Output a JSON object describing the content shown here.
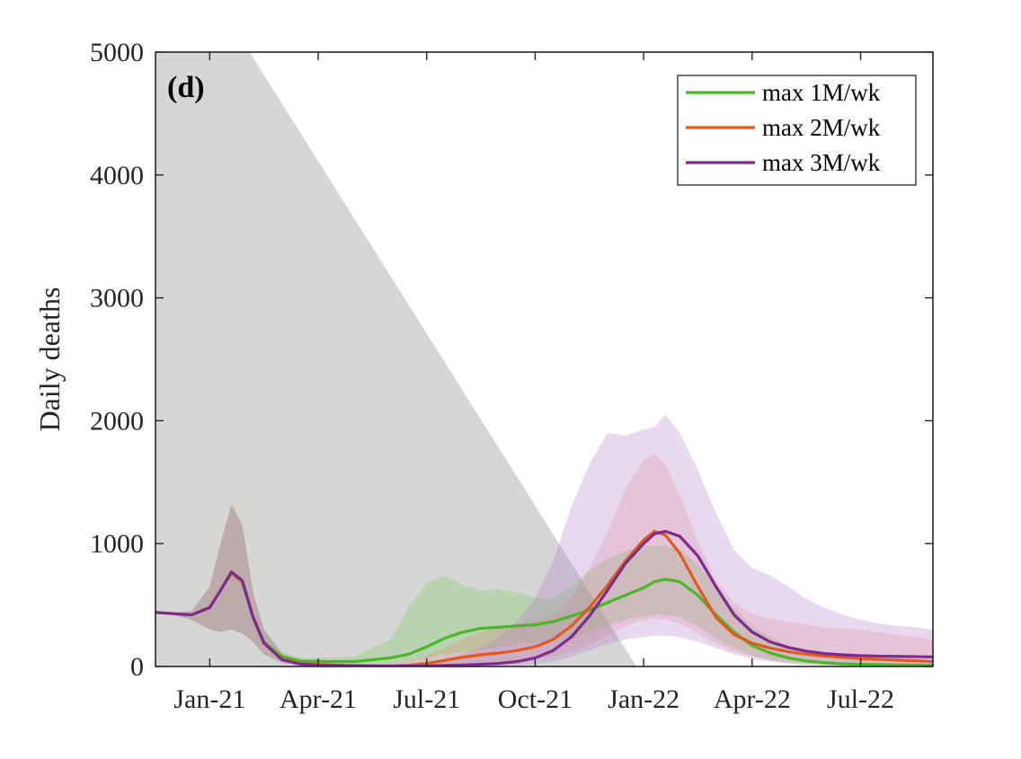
{
  "chart_data": {
    "type": "line",
    "panel_label": "(d)",
    "ylabel": "Daily deaths",
    "xlabel": "",
    "ylim": [
      0,
      5000
    ],
    "xlim": [
      -1.5,
      20
    ],
    "yticks": [
      0,
      1000,
      2000,
      3000,
      4000,
      5000
    ],
    "ytick_labels": [
      "0",
      "1000",
      "2000",
      "3000",
      "4000",
      "5000"
    ],
    "xticks": [
      0,
      3,
      6,
      9,
      12,
      15,
      18
    ],
    "xtick_labels": [
      "Jan-21",
      "Apr-21",
      "Jul-21",
      "Oct-21",
      "Jan-22",
      "Apr-22",
      "Jul-22"
    ],
    "x_unit": "months since Jan-21",
    "legend_position": "top-right",
    "grey_region": {
      "color": "#bdbdbd",
      "points": [
        [
          -1.5,
          5000
        ],
        [
          1.1,
          5000
        ],
        [
          11.8,
          0
        ],
        [
          -1.5,
          0
        ]
      ]
    },
    "series": [
      {
        "name": "max 1M/wk",
        "color": "#4bb62a",
        "band_color": "rgba(110,200,80,0.28)",
        "x": [
          -1.5,
          -1.0,
          -0.5,
          0.0,
          0.3,
          0.6,
          0.9,
          1.2,
          1.5,
          2.0,
          2.5,
          3.0,
          4.0,
          5.0,
          5.5,
          6.0,
          6.5,
          7.0,
          7.5,
          8.0,
          8.5,
          9.0,
          9.5,
          10.0,
          10.5,
          11.0,
          11.5,
          12.0,
          12.3,
          12.6,
          13.0,
          13.5,
          14.0,
          14.5,
          15.0,
          15.5,
          16.0,
          16.5,
          17.0,
          17.5,
          18.0,
          18.5,
          19.0,
          19.5,
          20.0
        ],
        "values": [
          440,
          430,
          420,
          480,
          620,
          760,
          690,
          400,
          200,
          80,
          45,
          40,
          40,
          70,
          100,
          160,
          230,
          280,
          310,
          320,
          330,
          340,
          365,
          410,
          460,
          520,
          580,
          640,
          690,
          710,
          690,
          580,
          420,
          280,
          170,
          110,
          70,
          45,
          30,
          22,
          18,
          15,
          12,
          10,
          8
        ],
        "lower": [
          440,
          420,
          380,
          300,
          280,
          300,
          270,
          200,
          100,
          40,
          20,
          15,
          10,
          20,
          40,
          70,
          100,
          120,
          140,
          160,
          180,
          200,
          210,
          230,
          280,
          330,
          380,
          410,
          420,
          420,
          400,
          330,
          230,
          150,
          90,
          50,
          25,
          15,
          10,
          5,
          3,
          3,
          3,
          3,
          3
        ],
        "upper": [
          450,
          440,
          450,
          650,
          1000,
          1320,
          1150,
          600,
          300,
          120,
          70,
          70,
          80,
          220,
          480,
          680,
          740,
          660,
          620,
          630,
          600,
          560,
          560,
          650,
          780,
          880,
          940,
          980,
          980,
          980,
          950,
          830,
          650,
          470,
          330,
          240,
          170,
          120,
          90,
          70,
          55,
          45,
          40,
          35,
          30
        ]
      },
      {
        "name": "max 2M/wk",
        "color": "#e2581f",
        "band_color": "rgba(232,110,100,0.20)",
        "x": [
          -1.5,
          -1.0,
          -0.5,
          0.0,
          0.3,
          0.6,
          0.9,
          1.2,
          1.5,
          2.0,
          2.5,
          3.0,
          4.0,
          5.0,
          5.5,
          6.0,
          6.5,
          7.0,
          7.5,
          8.0,
          8.5,
          9.0,
          9.5,
          10.0,
          10.5,
          11.0,
          11.5,
          12.0,
          12.3,
          12.6,
          13.0,
          13.5,
          14.0,
          14.5,
          15.0,
          15.5,
          16.0,
          16.5,
          17.0,
          17.5,
          18.0,
          18.5,
          19.0,
          19.5,
          20.0
        ],
        "values": [
          440,
          430,
          420,
          480,
          620,
          760,
          690,
          400,
          190,
          60,
          25,
          15,
          8,
          5,
          10,
          25,
          50,
          75,
          95,
          110,
          130,
          160,
          220,
          330,
          480,
          660,
          860,
          1030,
          1100,
          1070,
          920,
          650,
          400,
          260,
          190,
          150,
          120,
          100,
          85,
          75,
          65,
          58,
          52,
          47,
          40
        ],
        "lower": [
          440,
          420,
          380,
          300,
          280,
          300,
          270,
          200,
          100,
          30,
          10,
          5,
          2,
          1,
          2,
          5,
          10,
          20,
          30,
          40,
          50,
          60,
          80,
          120,
          180,
          250,
          330,
          380,
          390,
          380,
          350,
          270,
          180,
          120,
          80,
          55,
          40,
          30,
          22,
          17,
          14,
          12,
          10,
          9,
          8
        ],
        "upper": [
          450,
          440,
          450,
          650,
          1000,
          1320,
          1150,
          600,
          300,
          110,
          50,
          30,
          20,
          20,
          40,
          90,
          150,
          220,
          280,
          320,
          350,
          370,
          420,
          560,
          800,
          1100,
          1450,
          1680,
          1730,
          1650,
          1400,
          1020,
          700,
          520,
          430,
          390,
          360,
          340,
          320,
          310,
          300,
          280,
          260,
          240,
          220
        ]
      },
      {
        "name": "max 3M/wk",
        "color": "#7d2a91",
        "band_color": "rgba(175,120,200,0.28)",
        "x": [
          -1.5,
          -1.0,
          -0.5,
          0.0,
          0.3,
          0.6,
          0.9,
          1.2,
          1.5,
          2.0,
          2.5,
          3.0,
          4.0,
          5.0,
          5.5,
          6.0,
          6.5,
          7.0,
          7.5,
          8.0,
          8.5,
          9.0,
          9.5,
          10.0,
          10.5,
          11.0,
          11.5,
          12.0,
          12.3,
          12.6,
          13.0,
          13.5,
          14.0,
          14.5,
          15.0,
          15.5,
          16.0,
          16.5,
          17.0,
          17.5,
          18.0,
          18.5,
          19.0,
          19.5,
          20.0
        ],
        "values": [
          440,
          430,
          420,
          480,
          620,
          770,
          700,
          400,
          190,
          55,
          20,
          10,
          4,
          2,
          3,
          5,
          8,
          12,
          18,
          25,
          40,
          70,
          130,
          240,
          410,
          620,
          840,
          1000,
          1080,
          1100,
          1060,
          900,
          650,
          420,
          280,
          200,
          155,
          125,
          105,
          95,
          88,
          84,
          82,
          80,
          78
        ],
        "lower": [
          440,
          420,
          380,
          300,
          280,
          300,
          270,
          200,
          100,
          25,
          8,
          4,
          1,
          1,
          1,
          1,
          2,
          3,
          4,
          6,
          10,
          20,
          40,
          80,
          130,
          180,
          220,
          240,
          250,
          250,
          240,
          200,
          150,
          100,
          60,
          40,
          25,
          15,
          10,
          6,
          4,
          3,
          2,
          2,
          2
        ],
        "upper": [
          450,
          440,
          450,
          650,
          1000,
          1320,
          1150,
          600,
          300,
          100,
          40,
          25,
          15,
          15,
          20,
          35,
          60,
          100,
          160,
          240,
          370,
          560,
          860,
          1300,
          1650,
          1900,
          1880,
          1930,
          1950,
          2050,
          1900,
          1600,
          1250,
          950,
          800,
          740,
          650,
          550,
          480,
          420,
          380,
          350,
          330,
          320,
          300
        ]
      }
    ]
  }
}
